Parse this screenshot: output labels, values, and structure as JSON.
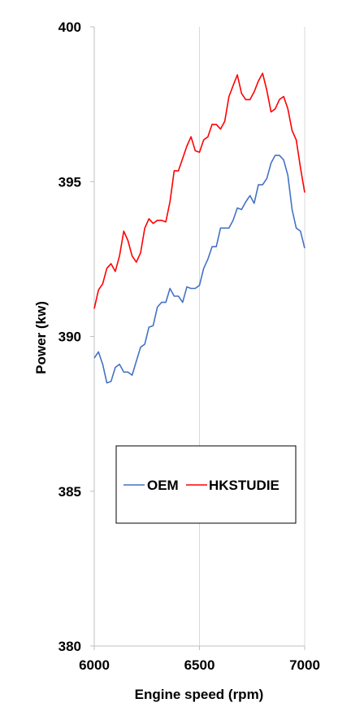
{
  "chart_data": {
    "type": "line",
    "title": "",
    "xlabel": "Engine speed (rpm)",
    "ylabel": "Power (kw)",
    "xlim": [
      6000,
      7000
    ],
    "ylim": [
      380,
      400
    ],
    "x_ticks": [
      "6000",
      "6500",
      "7000"
    ],
    "y_ticks": [
      "380",
      "385",
      "390",
      "395",
      "400"
    ],
    "grid": "vertical",
    "legend": {
      "position": "lower-center",
      "boxed": true
    },
    "x": [
      6000,
      6020,
      6040,
      6060,
      6080,
      6100,
      6120,
      6140,
      6160,
      6180,
      6200,
      6220,
      6240,
      6260,
      6280,
      6300,
      6320,
      6340,
      6360,
      6380,
      6400,
      6420,
      6440,
      6460,
      6480,
      6500,
      6520,
      6540,
      6560,
      6580,
      6600,
      6620,
      6640,
      6660,
      6680,
      6700,
      6720,
      6740,
      6760,
      6780,
      6800,
      6820,
      6840,
      6860,
      6880,
      6900,
      6920,
      6940,
      6960,
      6980,
      7000
    ],
    "series": [
      {
        "name": "OEM",
        "color": "#4472c4",
        "values": [
          389.3,
          389.5,
          389.1,
          388.5,
          388.55,
          389.0,
          389.1,
          388.85,
          388.85,
          388.75,
          389.2,
          389.65,
          389.75,
          390.3,
          390.35,
          390.95,
          391.1,
          391.1,
          391.55,
          391.3,
          391.3,
          391.1,
          391.6,
          391.55,
          391.55,
          391.65,
          392.2,
          392.5,
          392.9,
          392.9,
          393.5,
          393.5,
          393.5,
          393.75,
          394.15,
          394.1,
          394.35,
          394.55,
          394.3,
          394.9,
          394.9,
          395.1,
          395.6,
          395.85,
          395.85,
          395.7,
          395.2,
          394.1,
          393.5,
          393.4,
          392.85
        ]
      },
      {
        "name": "HKSTUDIE",
        "color": "#ff0000",
        "values": [
          390.9,
          391.5,
          391.7,
          392.2,
          392.35,
          392.1,
          392.6,
          393.4,
          393.1,
          392.6,
          392.4,
          392.7,
          393.5,
          393.8,
          393.65,
          393.75,
          393.75,
          393.7,
          394.35,
          395.35,
          395.35,
          395.75,
          396.15,
          396.45,
          396.0,
          395.95,
          396.35,
          396.45,
          396.85,
          396.85,
          396.7,
          396.95,
          397.75,
          398.1,
          398.45,
          397.85,
          397.65,
          397.65,
          397.9,
          398.25,
          398.5,
          397.95,
          397.25,
          397.35,
          397.65,
          397.75,
          397.35,
          396.65,
          396.35,
          395.45,
          394.65
        ]
      }
    ]
  }
}
